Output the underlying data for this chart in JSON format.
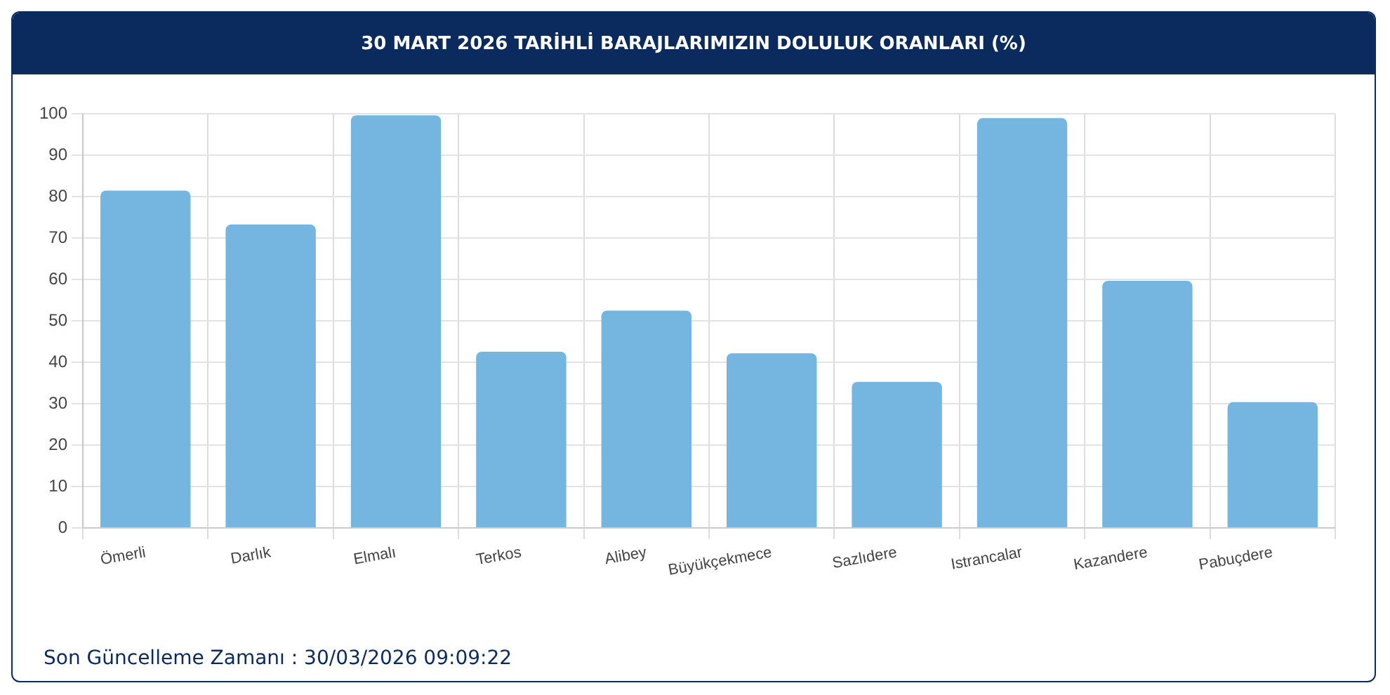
{
  "chart_data": {
    "type": "bar",
    "title": "30 MART 2026 TARİHLİ BARAJLARIMIZIN DOLULUK ORANLARI (%)",
    "categories": [
      "Ömerli",
      "Darlık",
      "Elmalı",
      "Terkos",
      "Alibey",
      "Büyükçekmece",
      "Sazlıdere",
      "Istrancalar",
      "Kazandere",
      "Pabuçdere"
    ],
    "values": [
      81.5,
      73.3,
      99.7,
      42.6,
      52.5,
      42.2,
      35.3,
      99,
      59.7,
      30.4
    ],
    "color": "#74b6e0",
    "ylim": [
      0,
      100
    ],
    "yticks": [
      0,
      10,
      20,
      30,
      40,
      50,
      60,
      70,
      80,
      90,
      100
    ],
    "grid": true,
    "legend": false,
    "annotations": [
      "Son Güncelleme Zamanı : 30/03/2026 09:09:22"
    ]
  }
}
